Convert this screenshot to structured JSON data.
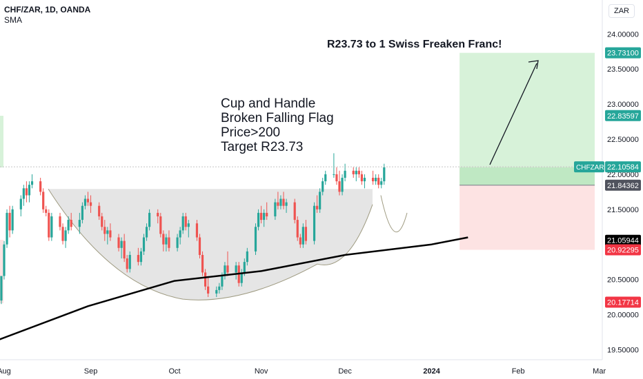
{
  "header": {
    "symbol": "CHF/ZAR, 1D, OANDA",
    "indicator": "SMA",
    "currency": "ZAR"
  },
  "colors": {
    "up": "#26a69a",
    "down": "#ef5350",
    "sma": "#000000",
    "profit_zone": "#d7f2d9",
    "loss_zone": "#fde3e3",
    "cup": "#e5e5e5",
    "last_price": "#26a69a",
    "target_badge": "#26a69a",
    "stop_badge": "#f23645",
    "sma_badge": "#000000",
    "neutral_badge": "#50535e"
  },
  "annotations": {
    "target_text": "R23.73 to 1 Swiss Freaken Franc!",
    "notes": [
      "Cup and Handle",
      "Broken Falling Flag",
      "Price>200",
      "Target R23.73"
    ]
  },
  "chart_data": {
    "type": "candlestick",
    "symbol": "CHFZAR",
    "y_range": [
      19.5,
      24.0
    ],
    "y_ticks": [
      "24.00000",
      "23.50000",
      "23.00000",
      "22.50000",
      "22.00000",
      "21.50000",
      "21.00000",
      "20.50000",
      "20.00000",
      "19.50000"
    ],
    "x_ticks": [
      {
        "label": "Aug",
        "day": 0
      },
      {
        "label": "Sep",
        "day": 31
      },
      {
        "label": "Oct",
        "day": 61
      },
      {
        "label": "Nov",
        "day": 92
      },
      {
        "label": "Dec",
        "day": 122
      },
      {
        "label": "2024",
        "day": 153,
        "bold": true
      },
      {
        "label": "Feb",
        "day": 184
      },
      {
        "label": "Mar",
        "day": 213
      }
    ],
    "price_labels": [
      {
        "value": "23.73100",
        "price": 23.731,
        "kind": "target"
      },
      {
        "value": "22.83597",
        "price": 22.836,
        "kind": "target"
      },
      {
        "value": "22.10584",
        "price": 22.106,
        "kind": "last",
        "name": "CHFZAR"
      },
      {
        "value": "21.84362",
        "price": 21.844,
        "kind": "neutral"
      },
      {
        "value": "21.05944",
        "price": 21.059,
        "kind": "sma"
      },
      {
        "value": "20.92295",
        "price": 20.923,
        "kind": "stop"
      },
      {
        "value": "20.17714",
        "price": 20.177,
        "kind": "stop"
      }
    ],
    "position": {
      "entry": 22.1,
      "target": 23.731,
      "stop": 20.923,
      "start_day": 163
    },
    "sma_200": [
      [
        -2,
        19.64
      ],
      [
        30,
        20.12
      ],
      [
        61,
        20.48
      ],
      [
        92,
        20.62
      ],
      [
        122,
        20.85
      ],
      [
        153,
        21.0
      ],
      [
        166,
        21.1
      ]
    ],
    "candles": [
      [
        -1,
        20.2,
        20.55,
        20.15,
        20.55
      ],
      [
        0,
        20.55,
        21.05,
        20.5,
        21.0
      ],
      [
        1,
        21.0,
        21.5,
        20.95,
        21.45
      ],
      [
        2,
        21.45,
        21.55,
        21.1,
        21.2
      ],
      [
        3,
        21.2,
        21.55,
        21.15,
        21.5
      ],
      [
        6,
        21.5,
        21.7,
        21.4,
        21.65
      ],
      [
        7,
        21.65,
        21.85,
        21.55,
        21.8
      ],
      [
        8,
        21.8,
        21.9,
        21.6,
        21.7
      ],
      [
        9,
        21.7,
        21.9,
        21.6,
        21.85
      ],
      [
        10,
        21.85,
        22.0,
        21.8,
        21.9
      ],
      [
        13,
        21.9,
        21.95,
        21.7,
        21.75
      ],
      [
        14,
        21.75,
        21.8,
        21.45,
        21.5
      ],
      [
        15,
        21.5,
        21.55,
        21.4,
        21.45
      ],
      [
        16,
        21.45,
        21.5,
        21.05,
        21.1
      ],
      [
        17,
        21.1,
        21.45,
        21.05,
        21.4
      ],
      [
        20,
        21.4,
        21.45,
        21.2,
        21.25
      ],
      [
        21,
        21.25,
        21.3,
        21.0,
        21.05
      ],
      [
        22,
        21.05,
        21.25,
        20.95,
        21.2
      ],
      [
        23,
        21.2,
        21.4,
        21.15,
        21.35
      ],
      [
        24,
        21.35,
        21.45,
        21.2,
        21.25
      ],
      [
        27,
        21.25,
        21.45,
        21.15,
        21.35
      ],
      [
        28,
        21.35,
        21.6,
        21.3,
        21.55
      ],
      [
        29,
        21.55,
        21.7,
        21.5,
        21.65
      ],
      [
        30,
        21.65,
        21.75,
        21.55,
        21.6
      ],
      [
        31,
        21.6,
        21.7,
        21.45,
        21.55
      ],
      [
        34,
        21.55,
        21.6,
        21.35,
        21.4
      ],
      [
        35,
        21.4,
        21.45,
        21.2,
        21.25
      ],
      [
        36,
        21.25,
        21.35,
        21.05,
        21.15
      ],
      [
        37,
        21.15,
        21.25,
        21.0,
        21.2
      ],
      [
        38,
        21.2,
        21.3,
        21.05,
        21.1
      ],
      [
        41,
        21.1,
        21.15,
        20.9,
        20.95
      ],
      [
        42,
        20.95,
        21.1,
        20.8,
        21.05
      ],
      [
        43,
        21.05,
        21.15,
        20.75,
        20.8
      ],
      [
        44,
        20.8,
        20.85,
        20.6,
        20.65
      ],
      [
        45,
        20.65,
        20.9,
        20.6,
        20.85
      ],
      [
        48,
        20.85,
        20.95,
        20.7,
        20.75
      ],
      [
        49,
        20.75,
        20.95,
        20.7,
        20.9
      ],
      [
        50,
        20.9,
        21.15,
        20.85,
        21.1
      ],
      [
        51,
        21.1,
        21.3,
        21.05,
        21.25
      ],
      [
        52,
        21.25,
        21.5,
        21.2,
        21.45
      ],
      [
        55,
        21.45,
        21.5,
        21.3,
        21.4
      ],
      [
        56,
        21.4,
        21.45,
        21.1,
        21.15
      ],
      [
        57,
        21.15,
        21.2,
        20.9,
        21.0
      ],
      [
        58,
        21.0,
        21.15,
        20.9,
        21.1
      ],
      [
        59,
        21.1,
        21.2,
        20.9,
        20.95
      ],
      [
        62,
        20.95,
        21.15,
        20.9,
        21.1
      ],
      [
        63,
        21.1,
        21.25,
        21.0,
        21.2
      ],
      [
        64,
        21.2,
        21.45,
        21.15,
        21.4
      ],
      [
        65,
        21.4,
        21.45,
        21.2,
        21.25
      ],
      [
        66,
        21.25,
        21.35,
        21.1,
        21.3
      ],
      [
        69,
        21.3,
        21.35,
        21.05,
        21.1
      ],
      [
        70,
        21.1,
        21.15,
        20.8,
        20.85
      ],
      [
        71,
        20.85,
        20.9,
        20.55,
        20.6
      ],
      [
        72,
        20.6,
        20.65,
        20.35,
        20.4
      ],
      [
        73,
        20.4,
        20.55,
        20.25,
        20.3
      ],
      [
        76,
        20.3,
        20.4,
        20.25,
        20.35
      ],
      [
        77,
        20.35,
        20.45,
        20.3,
        20.4
      ],
      [
        78,
        20.4,
        20.6,
        20.35,
        20.55
      ],
      [
        79,
        20.55,
        20.75,
        20.5,
        20.7
      ],
      [
        80,
        20.7,
        20.9,
        20.55,
        20.6
      ],
      [
        83,
        20.6,
        20.75,
        20.5,
        20.7
      ],
      [
        84,
        20.7,
        20.75,
        20.4,
        20.45
      ],
      [
        85,
        20.45,
        20.65,
        20.4,
        20.6
      ],
      [
        86,
        20.6,
        20.8,
        20.55,
        20.75
      ],
      [
        87,
        20.75,
        20.95,
        20.7,
        20.9
      ],
      [
        90,
        20.9,
        21.3,
        20.85,
        21.25
      ],
      [
        91,
        21.25,
        21.5,
        21.2,
        21.45
      ],
      [
        92,
        21.45,
        21.55,
        21.3,
        21.35
      ],
      [
        93,
        21.35,
        21.5,
        21.25,
        21.45
      ],
      [
        94,
        21.45,
        21.6,
        21.35,
        21.4
      ],
      [
        97,
        21.4,
        21.65,
        21.35,
        21.6
      ],
      [
        98,
        21.6,
        21.75,
        21.5,
        21.55
      ],
      [
        99,
        21.55,
        21.7,
        21.5,
        21.65
      ],
      [
        100,
        21.65,
        21.75,
        21.5,
        21.55
      ],
      [
        101,
        21.55,
        21.65,
        21.45,
        21.6
      ],
      [
        104,
        21.6,
        21.65,
        21.3,
        21.35
      ],
      [
        105,
        21.35,
        21.4,
        21.05,
        21.1
      ],
      [
        106,
        21.1,
        21.15,
        20.95,
        21.0
      ],
      [
        107,
        21.0,
        21.3,
        20.95,
        21.25
      ],
      [
        108,
        21.25,
        21.35,
        21.0,
        21.05
      ],
      [
        111,
        21.05,
        21.6,
        21.0,
        21.55
      ],
      [
        112,
        21.55,
        21.7,
        21.45,
        21.5
      ],
      [
        113,
        21.5,
        21.8,
        21.45,
        21.75
      ],
      [
        114,
        21.75,
        21.95,
        21.7,
        21.9
      ],
      [
        115,
        21.9,
        22.05,
        21.85,
        22.0
      ],
      [
        118,
        22.0,
        22.3,
        21.95,
        22.0
      ],
      [
        119,
        22.0,
        22.1,
        21.85,
        21.9
      ],
      [
        120,
        21.9,
        22.05,
        21.7,
        21.75
      ],
      [
        121,
        21.75,
        22.0,
        21.7,
        21.95
      ],
      [
        122,
        21.95,
        22.15,
        21.9,
        22.05
      ],
      [
        125,
        22.05,
        22.1,
        21.95,
        22.0
      ],
      [
        126,
        22.0,
        22.1,
        21.9,
        22.05
      ],
      [
        127,
        22.05,
        22.1,
        21.95,
        22.0
      ],
      [
        128,
        22.0,
        22.05,
        21.85,
        21.9
      ],
      [
        129,
        21.9,
        22.0,
        21.8,
        21.95
      ],
      [
        132,
        21.95,
        22.05,
        21.85,
        21.9
      ],
      [
        133,
        21.9,
        22.0,
        21.85,
        21.95
      ],
      [
        134,
        21.95,
        22.0,
        21.8,
        21.85
      ],
      [
        135,
        21.85,
        21.95,
        21.8,
        21.9
      ],
      [
        136,
        21.9,
        22.15,
        21.85,
        22.1
      ]
    ]
  }
}
